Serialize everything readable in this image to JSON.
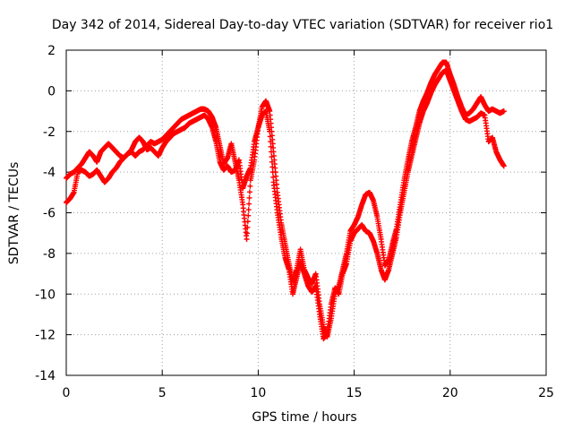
{
  "chart_data": {
    "type": "scatter",
    "title": "Day 342 of 2014, Sidereal Day-to-day VTEC variation (SDTVAR) for receiver rio1",
    "xlabel": "GPS time / hours",
    "ylabel": "SDTVAR / TECUs",
    "xlim": [
      0,
      25
    ],
    "ylim": [
      -14,
      2
    ],
    "xticks": [
      0,
      5,
      10,
      15,
      20,
      25
    ],
    "yticks": [
      2,
      0,
      -2,
      -4,
      -6,
      -8,
      -10,
      -12,
      -14
    ],
    "grid": true,
    "marker": "plus",
    "color": "#ff0000",
    "series": [
      {
        "values": [
          [
            0.0,
            -4.3
          ],
          [
            0.2,
            -4.1
          ],
          [
            0.4,
            -4.0
          ],
          [
            0.6,
            -3.8
          ],
          [
            0.8,
            -3.6
          ],
          [
            1.0,
            -3.3
          ],
          [
            1.2,
            -3.0
          ],
          [
            1.4,
            -3.2
          ],
          [
            1.6,
            -3.5
          ],
          [
            1.8,
            -3.0
          ],
          [
            2.0,
            -2.8
          ],
          [
            2.2,
            -2.6
          ],
          [
            2.4,
            -2.8
          ],
          [
            2.6,
            -3.0
          ],
          [
            2.8,
            -3.2
          ],
          [
            3.0,
            -3.3
          ],
          [
            3.2,
            -3.1
          ],
          [
            3.4,
            -3.0
          ],
          [
            3.6,
            -3.2
          ],
          [
            3.8,
            -3.0
          ],
          [
            4.0,
            -2.9
          ],
          [
            4.2,
            -2.7
          ],
          [
            4.4,
            -2.5
          ],
          [
            4.6,
            -2.6
          ],
          [
            4.8,
            -2.5
          ],
          [
            5.0,
            -2.4
          ],
          [
            5.2,
            -2.2
          ],
          [
            5.4,
            -2.0
          ],
          [
            5.6,
            -1.8
          ],
          [
            5.8,
            -1.6
          ],
          [
            6.0,
            -1.4
          ],
          [
            6.2,
            -1.3
          ],
          [
            6.4,
            -1.2
          ],
          [
            6.6,
            -1.1
          ],
          [
            6.8,
            -1.0
          ],
          [
            7.0,
            -0.9
          ],
          [
            7.2,
            -0.9
          ],
          [
            7.4,
            -1.0
          ],
          [
            7.6,
            -1.3
          ],
          [
            7.8,
            -1.8
          ],
          [
            8.0,
            -2.7
          ],
          [
            8.2,
            -3.6
          ],
          [
            8.4,
            -3.3
          ],
          [
            8.6,
            -2.6
          ],
          [
            8.8,
            -3.5
          ],
          [
            9.0,
            -4.4
          ],
          [
            9.2,
            -5.6
          ],
          [
            9.4,
            -7.3
          ],
          [
            9.6,
            -4.4
          ],
          [
            9.8,
            -3.4
          ],
          [
            10.0,
            -1.8
          ],
          [
            10.2,
            -0.8
          ],
          [
            10.4,
            -0.5
          ],
          [
            10.6,
            -1.0
          ],
          [
            10.8,
            -3.0
          ],
          [
            11.0,
            -5.0
          ],
          [
            11.2,
            -6.5
          ],
          [
            11.4,
            -7.5
          ],
          [
            11.6,
            -8.5
          ],
          [
            11.8,
            -9.4
          ],
          [
            12.0,
            -8.8
          ],
          [
            12.2,
            -7.8
          ],
          [
            12.4,
            -8.8
          ],
          [
            12.6,
            -9.2
          ],
          [
            12.8,
            -9.5
          ],
          [
            13.0,
            -9.0
          ],
          [
            13.2,
            -10.5
          ],
          [
            13.4,
            -11.6
          ],
          [
            13.6,
            -12.1
          ],
          [
            13.8,
            -11.2
          ],
          [
            14.0,
            -10.0
          ],
          [
            14.2,
            -9.6
          ],
          [
            14.4,
            -8.8
          ],
          [
            14.6,
            -8.0
          ],
          [
            14.8,
            -6.9
          ],
          [
            15.0,
            -6.6
          ],
          [
            15.2,
            -6.2
          ],
          [
            15.4,
            -5.6
          ],
          [
            15.6,
            -5.1
          ],
          [
            15.8,
            -5.0
          ],
          [
            16.0,
            -5.4
          ],
          [
            16.2,
            -6.2
          ],
          [
            16.4,
            -7.3
          ],
          [
            16.6,
            -8.6
          ],
          [
            16.8,
            -8.3
          ],
          [
            17.0,
            -7.5
          ],
          [
            17.2,
            -6.8
          ],
          [
            17.4,
            -5.6
          ],
          [
            17.6,
            -4.4
          ],
          [
            17.8,
            -3.4
          ],
          [
            18.0,
            -2.5
          ],
          [
            18.2,
            -1.8
          ],
          [
            18.4,
            -1.0
          ],
          [
            18.6,
            -0.5
          ],
          [
            18.8,
            -0.1
          ],
          [
            19.0,
            0.4
          ],
          [
            19.2,
            0.8
          ],
          [
            19.4,
            1.1
          ],
          [
            19.6,
            1.4
          ],
          [
            19.8,
            1.4
          ],
          [
            20.0,
            0.8
          ],
          [
            20.2,
            0.3
          ],
          [
            20.4,
            -0.3
          ],
          [
            20.6,
            -0.8
          ],
          [
            20.8,
            -1.2
          ],
          [
            21.0,
            -1.1
          ],
          [
            21.2,
            -0.9
          ],
          [
            21.4,
            -0.6
          ],
          [
            21.6,
            -0.3
          ],
          [
            21.8,
            -0.7
          ],
          [
            22.0,
            -1.0
          ],
          [
            22.2,
            -0.9
          ],
          [
            22.4,
            -1.0
          ],
          [
            22.6,
            -1.1
          ],
          [
            22.8,
            -1.0
          ]
        ]
      },
      {
        "values": [
          [
            0.0,
            -5.5
          ],
          [
            0.2,
            -5.3
          ],
          [
            0.4,
            -5.0
          ],
          [
            0.6,
            -4.0
          ],
          [
            0.8,
            -3.9
          ],
          [
            1.0,
            -4.0
          ],
          [
            1.2,
            -4.2
          ],
          [
            1.4,
            -4.1
          ],
          [
            1.6,
            -3.9
          ],
          [
            1.8,
            -4.2
          ],
          [
            2.0,
            -4.5
          ],
          [
            2.2,
            -4.3
          ],
          [
            2.4,
            -4.0
          ],
          [
            2.6,
            -3.8
          ],
          [
            2.8,
            -3.5
          ],
          [
            3.0,
            -3.3
          ],
          [
            3.2,
            -3.1
          ],
          [
            3.4,
            -2.9
          ],
          [
            3.6,
            -2.5
          ],
          [
            3.8,
            -2.3
          ],
          [
            4.0,
            -2.5
          ],
          [
            4.2,
            -2.9
          ],
          [
            4.4,
            -2.8
          ],
          [
            4.6,
            -3.0
          ],
          [
            4.8,
            -3.2
          ],
          [
            5.0,
            -2.8
          ],
          [
            5.2,
            -2.5
          ],
          [
            5.4,
            -2.3
          ],
          [
            5.6,
            -2.1
          ],
          [
            5.8,
            -2.0
          ],
          [
            6.0,
            -1.9
          ],
          [
            6.2,
            -1.8
          ],
          [
            6.4,
            -1.6
          ],
          [
            6.6,
            -1.5
          ],
          [
            6.8,
            -1.4
          ],
          [
            7.0,
            -1.3
          ],
          [
            7.2,
            -1.2
          ],
          [
            7.4,
            -1.4
          ],
          [
            7.6,
            -1.8
          ],
          [
            7.8,
            -2.5
          ],
          [
            8.0,
            -3.5
          ],
          [
            8.2,
            -3.9
          ],
          [
            8.4,
            -3.7
          ],
          [
            8.6,
            -4.0
          ],
          [
            8.8,
            -3.9
          ],
          [
            9.0,
            -3.4
          ],
          [
            9.2,
            -4.8
          ],
          [
            9.4,
            -4.2
          ],
          [
            9.6,
            -3.8
          ],
          [
            9.8,
            -2.5
          ],
          [
            10.0,
            -1.8
          ],
          [
            10.2,
            -1.2
          ],
          [
            10.4,
            -1.0
          ],
          [
            10.6,
            -2.0
          ],
          [
            10.8,
            -4.5
          ],
          [
            11.0,
            -6.0
          ],
          [
            11.2,
            -7.2
          ],
          [
            11.4,
            -8.2
          ],
          [
            11.6,
            -8.8
          ],
          [
            11.8,
            -10.0
          ],
          [
            12.0,
            -9.2
          ],
          [
            12.2,
            -8.4
          ],
          [
            12.4,
            -9.0
          ],
          [
            12.6,
            -9.6
          ],
          [
            12.8,
            -9.9
          ],
          [
            13.0,
            -9.6
          ],
          [
            13.2,
            -11.0
          ],
          [
            13.4,
            -12.2
          ],
          [
            13.6,
            -11.9
          ],
          [
            13.8,
            -10.5
          ],
          [
            14.0,
            -9.7
          ],
          [
            14.2,
            -10.0
          ],
          [
            14.4,
            -9.0
          ],
          [
            14.6,
            -8.5
          ],
          [
            14.8,
            -7.4
          ],
          [
            15.0,
            -7.0
          ],
          [
            15.2,
            -6.8
          ],
          [
            15.4,
            -6.6
          ],
          [
            15.6,
            -6.9
          ],
          [
            15.8,
            -7.0
          ],
          [
            16.0,
            -7.4
          ],
          [
            16.2,
            -8.0
          ],
          [
            16.4,
            -8.8
          ],
          [
            16.6,
            -9.3
          ],
          [
            16.8,
            -8.8
          ],
          [
            17.0,
            -8.0
          ],
          [
            17.2,
            -7.2
          ],
          [
            17.4,
            -6.0
          ],
          [
            17.6,
            -5.0
          ],
          [
            17.8,
            -4.0
          ],
          [
            18.0,
            -3.2
          ],
          [
            18.2,
            -2.4
          ],
          [
            18.4,
            -1.6
          ],
          [
            18.6,
            -1.0
          ],
          [
            18.8,
            -0.6
          ],
          [
            19.0,
            -0.1
          ],
          [
            19.2,
            0.3
          ],
          [
            19.4,
            0.6
          ],
          [
            19.6,
            0.9
          ],
          [
            19.8,
            1.0
          ],
          [
            20.0,
            0.5
          ],
          [
            20.2,
            0.0
          ],
          [
            20.4,
            -0.5
          ],
          [
            20.6,
            -1.0
          ],
          [
            20.8,
            -1.4
          ],
          [
            21.0,
            -1.5
          ],
          [
            21.2,
            -1.4
          ],
          [
            21.4,
            -1.3
          ],
          [
            21.6,
            -1.1
          ],
          [
            21.8,
            -1.2
          ],
          [
            22.0,
            -2.5
          ],
          [
            22.2,
            -2.3
          ],
          [
            22.4,
            -3.0
          ],
          [
            22.6,
            -3.4
          ],
          [
            22.8,
            -3.7
          ]
        ]
      }
    ]
  }
}
